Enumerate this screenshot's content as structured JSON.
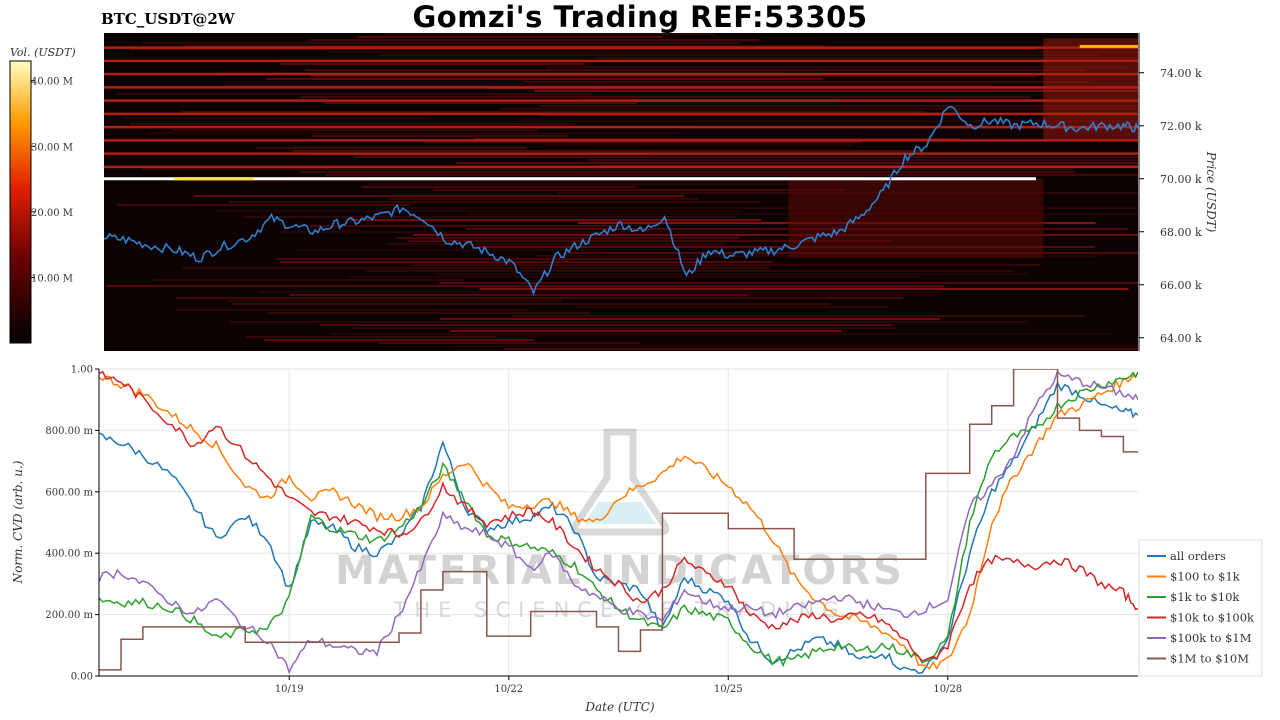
{
  "header": {
    "title": "Gomzi's Trading REF:53305",
    "pair": "BTC_USDT@2W"
  },
  "colorbar": {
    "label": "Vol. (USDT)",
    "ticks": [
      "40.00 M",
      "30.00 M",
      "20.00 M",
      "10.00 M"
    ],
    "tick_values": [
      40,
      30,
      20,
      10
    ],
    "max": 43
  },
  "watermark": {
    "line1": "MATERIAL INDICATORS",
    "line2": "THE SCIENCE OF TRADING"
  },
  "chart_data": [
    {
      "type": "heatmap",
      "name": "orderbook-heatmap",
      "ylabel": "Price (USDT)",
      "ylim": [
        63.5,
        75.5
      ],
      "y_ticks": [
        "74.00 k",
        "72.00 k",
        "70.00 k",
        "68.00 k",
        "66.00 k",
        "64.00 k"
      ],
      "y_tick_values": [
        74,
        72,
        70,
        68,
        66,
        64
      ],
      "x_range_days": [
        0,
        14.2
      ],
      "price_series": {
        "name": "BTC price",
        "x": [
          0,
          0.3,
          0.6,
          1.0,
          1.3,
          1.6,
          2.0,
          2.3,
          2.6,
          2.9,
          3.2,
          3.5,
          3.8,
          4.1,
          4.4,
          4.7,
          5.0,
          5.3,
          5.6,
          5.9,
          6.2,
          6.5,
          6.8,
          7.1,
          7.4,
          7.7,
          8.0,
          8.3,
          8.6,
          8.9,
          9.2,
          9.5,
          9.8,
          10.1,
          10.4,
          10.7,
          11.0,
          11.3,
          11.6,
          11.9,
          12.2,
          12.5,
          12.8,
          13.1,
          13.4,
          13.7,
          14.0,
          14.2
        ],
        "y": [
          67.8,
          67.7,
          67.5,
          67.3,
          67.0,
          67.4,
          67.8,
          68.5,
          68.2,
          68.0,
          68.3,
          68.4,
          68.6,
          68.9,
          68.5,
          67.7,
          67.5,
          67.2,
          66.8,
          65.7,
          67.0,
          67.5,
          67.9,
          68.3,
          68.0,
          68.6,
          66.3,
          67.3,
          67.1,
          67.2,
          67.3,
          67.5,
          67.8,
          68.0,
          68.6,
          69.5,
          70.8,
          71.3,
          72.8,
          72.0,
          72.2,
          72.0,
          72.1,
          72.0,
          71.9,
          72.0,
          72.0,
          71.9
        ]
      },
      "bright_level": {
        "price": 70.0,
        "x_start": 0,
        "x_end": 12.8
      }
    },
    {
      "type": "line",
      "name": "normalized-cvd",
      "xlabel": "Date (UTC)",
      "ylabel": "Norm. CVD (arb. u.)",
      "ylim": [
        0,
        1
      ],
      "y_ticks": [
        "1.00",
        "800.00 m",
        "600.00 m",
        "400.00 m",
        "200.00 m",
        "0.00"
      ],
      "y_tick_values": [
        1,
        0.8,
        0.6,
        0.4,
        0.2,
        0
      ],
      "x_ticks": [
        "10/19",
        "10/22",
        "10/25",
        "10/28"
      ],
      "x_tick_values": [
        2.6,
        5.6,
        8.6,
        11.6
      ],
      "xlim": [
        0,
        14.2
      ],
      "legend_position": "right",
      "x": [
        0,
        0.3,
        0.6,
        1.0,
        1.3,
        1.6,
        2.0,
        2.3,
        2.6,
        2.9,
        3.2,
        3.5,
        3.8,
        4.1,
        4.4,
        4.7,
        5.0,
        5.3,
        5.6,
        5.9,
        6.2,
        6.5,
        6.8,
        7.1,
        7.4,
        7.7,
        8.0,
        8.3,
        8.6,
        8.9,
        9.2,
        9.5,
        9.8,
        10.1,
        10.4,
        10.7,
        11.0,
        11.3,
        11.6,
        11.9,
        12.2,
        12.5,
        12.8,
        13.1,
        13.4,
        13.7,
        14.0,
        14.2
      ],
      "series": [
        {
          "name": "all orders",
          "color": "#1f77b4",
          "values": [
            0.78,
            0.76,
            0.72,
            0.65,
            0.55,
            0.45,
            0.52,
            0.45,
            0.28,
            0.5,
            0.48,
            0.42,
            0.4,
            0.45,
            0.55,
            0.76,
            0.55,
            0.48,
            0.5,
            0.52,
            0.55,
            0.48,
            0.32,
            0.3,
            0.28,
            0.15,
            0.32,
            0.28,
            0.25,
            0.12,
            0.05,
            0.08,
            0.12,
            0.1,
            0.05,
            0.08,
            0.02,
            0.02,
            0.12,
            0.4,
            0.6,
            0.7,
            0.82,
            0.95,
            0.92,
            0.88,
            0.86,
            0.85
          ]
        },
        {
          "name": "$100 to $1k",
          "color": "#ff7f0e",
          "values": [
            0.98,
            0.95,
            0.92,
            0.85,
            0.8,
            0.75,
            0.62,
            0.58,
            0.65,
            0.58,
            0.6,
            0.56,
            0.52,
            0.52,
            0.55,
            0.65,
            0.7,
            0.62,
            0.55,
            0.56,
            0.57,
            0.52,
            0.5,
            0.58,
            0.62,
            0.66,
            0.72,
            0.67,
            0.62,
            0.55,
            0.45,
            0.32,
            0.25,
            0.2,
            0.18,
            0.15,
            0.1,
            0.02,
            0.05,
            0.2,
            0.5,
            0.65,
            0.75,
            0.85,
            0.88,
            0.92,
            0.96,
            0.99
          ]
        },
        {
          "name": "$1k to $10k",
          "color": "#2ca02c",
          "values": [
            0.25,
            0.24,
            0.24,
            0.22,
            0.18,
            0.12,
            0.15,
            0.15,
            0.25,
            0.52,
            0.48,
            0.46,
            0.44,
            0.48,
            0.55,
            0.68,
            0.58,
            0.46,
            0.44,
            0.42,
            0.4,
            0.36,
            0.28,
            0.22,
            0.18,
            0.15,
            0.22,
            0.2,
            0.18,
            0.1,
            0.05,
            0.05,
            0.08,
            0.1,
            0.08,
            0.1,
            0.08,
            0.05,
            0.12,
            0.5,
            0.72,
            0.78,
            0.8,
            0.88,
            0.92,
            0.95,
            0.97,
            0.99
          ]
        },
        {
          "name": "$10k to $100k",
          "color": "#d62728",
          "values": [
            0.98,
            0.96,
            0.9,
            0.82,
            0.75,
            0.82,
            0.72,
            0.65,
            0.58,
            0.53,
            0.52,
            0.5,
            0.48,
            0.46,
            0.5,
            0.62,
            0.55,
            0.5,
            0.52,
            0.54,
            0.5,
            0.42,
            0.35,
            0.3,
            0.24,
            0.28,
            0.38,
            0.33,
            0.3,
            0.2,
            0.16,
            0.18,
            0.2,
            0.18,
            0.2,
            0.18,
            0.12,
            0.04,
            0.1,
            0.3,
            0.38,
            0.37,
            0.36,
            0.38,
            0.35,
            0.3,
            0.27,
            0.22
          ]
        },
        {
          "name": "$100k to $1M",
          "color": "#9467bd",
          "values": [
            0.32,
            0.34,
            0.3,
            0.24,
            0.2,
            0.25,
            0.16,
            0.12,
            0.02,
            0.12,
            0.1,
            0.08,
            0.08,
            0.2,
            0.35,
            0.52,
            0.48,
            0.46,
            0.42,
            0.35,
            0.4,
            0.3,
            0.26,
            0.22,
            0.2,
            0.18,
            0.28,
            0.24,
            0.22,
            0.22,
            0.2,
            0.22,
            0.24,
            0.26,
            0.24,
            0.22,
            0.2,
            0.22,
            0.25,
            0.55,
            0.62,
            0.72,
            0.88,
            0.98,
            0.96,
            0.94,
            0.92,
            0.9
          ]
        },
        {
          "name": "$1M to $10M",
          "color": "#8c564b",
          "values": [
            0.02,
            0.12,
            0.16,
            0.16,
            0.16,
            0.16,
            0.11,
            0.11,
            0.11,
            0.11,
            0.11,
            0.11,
            0.11,
            0.14,
            0.28,
            0.34,
            0.34,
            0.13,
            0.13,
            0.21,
            0.21,
            0.21,
            0.16,
            0.08,
            0.15,
            0.53,
            0.53,
            0.53,
            0.48,
            0.48,
            0.48,
            0.38,
            0.38,
            0.38,
            0.38,
            0.38,
            0.38,
            0.66,
            0.66,
            0.82,
            0.88,
            1.0,
            1.0,
            0.84,
            0.8,
            0.78,
            0.73,
            0.73
          ]
        }
      ]
    }
  ]
}
